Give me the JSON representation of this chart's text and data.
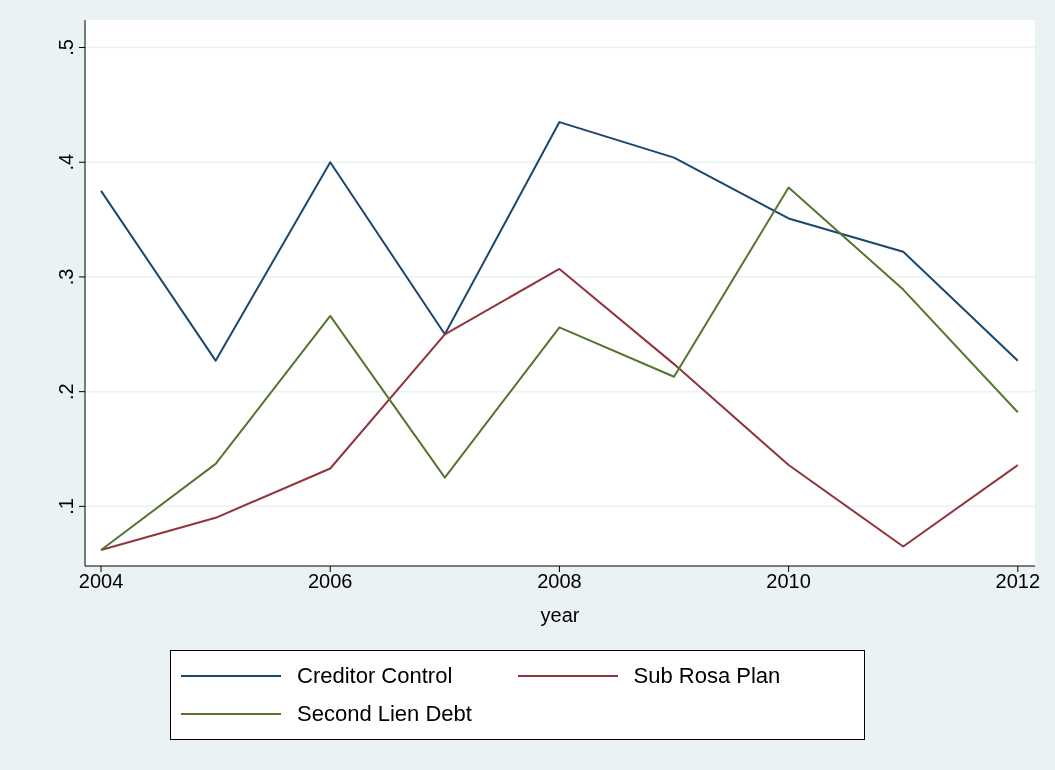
{
  "chart_data": {
    "type": "line",
    "xlabel": "year",
    "x": [
      2004,
      2005,
      2006,
      2007,
      2008,
      2009,
      2010,
      2011,
      2012
    ],
    "series": [
      {
        "name": "Creditor Control",
        "color": "#1a476f",
        "values": [
          0.375,
          0.227,
          0.4,
          0.25,
          0.435,
          0.404,
          0.351,
          0.322,
          0.227
        ]
      },
      {
        "name": "Sub Rosa Plan",
        "color": "#90353b",
        "values": [
          0.062,
          0.09,
          0.133,
          0.25,
          0.307,
          0.224,
          0.136,
          0.065,
          0.136
        ]
      },
      {
        "name": "Second Lien Debt",
        "color": "#55752f",
        "values": [
          0.062,
          0.137,
          0.266,
          0.125,
          0.256,
          0.213,
          0.378,
          0.289,
          0.182
        ]
      }
    ],
    "xlim": [
      2003.86,
      2012.15
    ],
    "xticks": [
      2004,
      2006,
      2008,
      2010,
      2012
    ],
    "ylim": [
      0.048,
      0.524
    ],
    "yticks": [
      {
        "value": 0.1,
        "label": ".1"
      },
      {
        "value": 0.2,
        "label": ".2"
      },
      {
        "value": 0.3,
        "label": ".3"
      },
      {
        "value": 0.4,
        "label": ".4"
      },
      {
        "value": 0.5,
        "label": ".5"
      }
    ],
    "grid": "y",
    "legend": "bottom",
    "marker": "none",
    "line_style": "solid"
  }
}
